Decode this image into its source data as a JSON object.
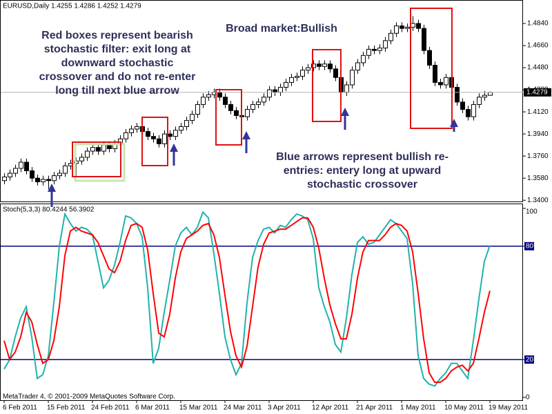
{
  "chart_data": [
    {
      "type": "candlestick",
      "title": "EURUSD,Daily 1.4255 1.4286 1.4252 1.4279",
      "x": [
        "2011-02-06",
        "2011-02-07",
        "2011-02-08",
        "2011-02-09",
        "2011-02-10",
        "2011-02-11",
        "2011-02-13",
        "2011-02-14",
        "2011-02-15",
        "2011-02-16",
        "2011-02-17",
        "2011-02-18",
        "2011-02-20",
        "2011-02-21",
        "2011-02-22",
        "2011-02-23",
        "2011-02-24",
        "2011-02-25",
        "2011-02-27",
        "2011-02-28",
        "2011-03-01",
        "2011-03-02",
        "2011-03-03",
        "2011-03-04",
        "2011-03-06",
        "2011-03-07",
        "2011-03-08",
        "2011-03-09",
        "2011-03-10",
        "2011-03-11",
        "2011-03-13",
        "2011-03-14",
        "2011-03-15",
        "2011-03-16",
        "2011-03-17",
        "2011-03-18",
        "2011-03-20",
        "2011-03-21",
        "2011-03-22",
        "2011-03-23",
        "2011-03-24",
        "2011-03-25",
        "2011-03-27",
        "2011-03-28",
        "2011-03-29",
        "2011-03-30",
        "2011-03-31",
        "2011-04-01",
        "2011-04-03",
        "2011-04-04",
        "2011-04-05",
        "2011-04-06",
        "2011-04-07",
        "2011-04-08",
        "2011-04-10",
        "2011-04-11",
        "2011-04-12",
        "2011-04-13",
        "2011-04-14",
        "2011-04-15",
        "2011-04-17",
        "2011-04-18",
        "2011-04-19",
        "2011-04-20",
        "2011-04-21",
        "2011-04-22",
        "2011-04-24",
        "2011-04-25",
        "2011-04-26",
        "2011-04-27",
        "2011-04-28",
        "2011-04-29",
        "2011-05-01",
        "2011-05-02",
        "2011-05-03",
        "2011-05-04",
        "2011-05-05",
        "2011-05-06",
        "2011-05-08",
        "2011-05-09",
        "2011-05-10",
        "2011-05-11",
        "2011-05-12",
        "2011-05-13",
        "2011-05-15",
        "2011-05-16",
        "2011-05-17",
        "2011-05-18",
        "2011-05-19"
      ],
      "open": [
        1.356,
        1.359,
        1.362,
        1.366,
        1.371,
        1.364,
        1.358,
        1.355,
        1.357,
        1.356,
        1.36,
        1.362,
        1.368,
        1.37,
        1.372,
        1.375,
        1.38,
        1.383,
        1.38,
        1.385,
        1.382,
        1.386,
        1.39,
        1.395,
        1.398,
        1.4,
        1.396,
        1.392,
        1.39,
        1.386,
        1.394,
        1.392,
        1.397,
        1.4,
        1.405,
        1.41,
        1.418,
        1.424,
        1.426,
        1.428,
        1.424,
        1.418,
        1.413,
        1.409,
        1.408,
        1.414,
        1.418,
        1.42,
        1.424,
        1.43,
        1.428,
        1.432,
        1.436,
        1.44,
        1.441,
        1.446,
        1.448,
        1.451,
        1.449,
        1.451,
        1.447,
        1.44,
        1.428,
        1.434,
        1.446,
        1.452,
        1.458,
        1.463,
        1.462,
        1.464,
        1.47,
        1.476,
        1.482,
        1.48,
        1.481,
        1.484,
        1.48,
        1.462,
        1.45,
        1.436,
        1.434,
        1.44,
        1.432,
        1.42,
        1.414,
        1.408,
        1.418,
        1.424,
        1.4255
      ],
      "high": [
        1.362,
        1.365,
        1.369,
        1.374,
        1.374,
        1.367,
        1.361,
        1.36,
        1.36,
        1.363,
        1.365,
        1.371,
        1.373,
        1.375,
        1.378,
        1.383,
        1.386,
        1.386,
        1.388,
        1.388,
        1.389,
        1.393,
        1.398,
        1.401,
        1.403,
        1.403,
        1.399,
        1.395,
        1.393,
        1.397,
        1.397,
        1.4,
        1.403,
        1.408,
        1.413,
        1.421,
        1.427,
        1.429,
        1.431,
        1.431,
        1.427,
        1.421,
        1.416,
        1.412,
        1.417,
        1.421,
        1.423,
        1.427,
        1.433,
        1.433,
        1.435,
        1.439,
        1.443,
        1.444,
        1.449,
        1.451,
        1.454,
        1.454,
        1.454,
        1.454,
        1.45,
        1.443,
        1.437,
        1.449,
        1.455,
        1.461,
        1.466,
        1.466,
        1.467,
        1.473,
        1.479,
        1.485,
        1.485,
        1.484,
        1.49,
        1.487,
        1.483,
        1.465,
        1.453,
        1.439,
        1.443,
        1.443,
        1.435,
        1.423,
        1.417,
        1.421,
        1.427,
        1.429,
        1.4286
      ],
      "low": [
        1.353,
        1.356,
        1.359,
        1.363,
        1.361,
        1.355,
        1.352,
        1.352,
        1.349,
        1.353,
        1.357,
        1.359,
        1.365,
        1.36,
        1.369,
        1.372,
        1.377,
        1.377,
        1.377,
        1.379,
        1.379,
        1.383,
        1.387,
        1.392,
        1.395,
        1.393,
        1.389,
        1.387,
        1.383,
        1.383,
        1.389,
        1.389,
        1.394,
        1.397,
        1.402,
        1.407,
        1.415,
        1.421,
        1.423,
        1.421,
        1.415,
        1.41,
        1.406,
        1.405,
        1.405,
        1.411,
        1.415,
        1.417,
        1.421,
        1.425,
        1.425,
        1.429,
        1.433,
        1.437,
        1.438,
        1.443,
        1.445,
        1.446,
        1.446,
        1.444,
        1.437,
        1.425,
        1.425,
        1.431,
        1.443,
        1.449,
        1.455,
        1.459,
        1.459,
        1.461,
        1.467,
        1.473,
        1.477,
        1.477,
        1.478,
        1.477,
        1.459,
        1.447,
        1.433,
        1.431,
        1.431,
        1.429,
        1.417,
        1.411,
        1.405,
        1.405,
        1.415,
        1.421,
        1.4252
      ],
      "close": [
        1.359,
        1.362,
        1.366,
        1.371,
        1.364,
        1.358,
        1.355,
        1.357,
        1.356,
        1.36,
        1.362,
        1.368,
        1.37,
        1.372,
        1.375,
        1.38,
        1.383,
        1.38,
        1.385,
        1.382,
        1.386,
        1.39,
        1.395,
        1.398,
        1.4,
        1.396,
        1.392,
        1.39,
        1.386,
        1.394,
        1.392,
        1.397,
        1.4,
        1.405,
        1.41,
        1.418,
        1.424,
        1.426,
        1.428,
        1.424,
        1.418,
        1.413,
        1.409,
        1.408,
        1.414,
        1.418,
        1.42,
        1.424,
        1.43,
        1.428,
        1.432,
        1.436,
        1.44,
        1.441,
        1.446,
        1.448,
        1.451,
        1.449,
        1.451,
        1.447,
        1.44,
        1.428,
        1.434,
        1.446,
        1.452,
        1.458,
        1.463,
        1.462,
        1.464,
        1.47,
        1.476,
        1.482,
        1.48,
        1.481,
        1.484,
        1.48,
        1.462,
        1.45,
        1.436,
        1.434,
        1.44,
        1.432,
        1.42,
        1.414,
        1.408,
        1.418,
        1.424,
        1.4255,
        1.4279
      ],
      "ylim": [
        1.339,
        1.502
      ],
      "yticks": [
        {
          "value": 1.34,
          "label": "1.3400"
        },
        {
          "value": 1.358,
          "label": "1.3580"
        },
        {
          "value": 1.376,
          "label": "1.3760"
        },
        {
          "value": 1.394,
          "label": "1.3940"
        },
        {
          "value": 1.412,
          "label": "1.4120"
        },
        {
          "value": 1.43,
          "label": "1.4300"
        },
        {
          "value": 1.448,
          "label": "1.4480"
        },
        {
          "value": 1.466,
          "label": "1.4660"
        },
        {
          "value": 1.484,
          "label": "1.4840"
        }
      ],
      "annotations": [
        {
          "color": "#2e2e5a",
          "lines": [
            "Red boxes represent bearish",
            "stochastic filter: exit long at",
            "downward stochastic",
            "crossover and do not re-enter",
            "long till next blue arrow"
          ]
        },
        {
          "color": "#2e2e5a",
          "lines": [
            "Broad market:Bullish"
          ]
        },
        {
          "color": "#2e2e5a",
          "lines": [
            "Blue arrows represent bullish re-",
            "entries: entery long at upward",
            "stochastic crossover"
          ]
        }
      ]
    },
    {
      "type": "line",
      "title": "Stoch(5,3,3) 80.4244 56.3902",
      "series": [
        {
          "color": "#20b2aa",
          "values": [
            15,
            20,
            32,
            42,
            48,
            32,
            10,
            12,
            22,
            50,
            80,
            97,
            92,
            88,
            90,
            89,
            86,
            72,
            58,
            62,
            70,
            82,
            96,
            95,
            92,
            85,
            58,
            18,
            26,
            45,
            62,
            80,
            87,
            90,
            86,
            90,
            98,
            95,
            76,
            55,
            32,
            20,
            12,
            18,
            50,
            74,
            83,
            89,
            90,
            87,
            91,
            90,
            94,
            97,
            96,
            94,
            84,
            58,
            48,
            40,
            28,
            24,
            42,
            65,
            82,
            85,
            81,
            82,
            86,
            90,
            94,
            92,
            88,
            84,
            60,
            22,
            10,
            7,
            6,
            10,
            13,
            18,
            18,
            14,
            10,
            30,
            52,
            72,
            80.4244
          ]
        },
        {
          "color": "#ff0000",
          "values": [
            30,
            20,
            24,
            32,
            45,
            40,
            28,
            18,
            20,
            30,
            48,
            75,
            88,
            90,
            88,
            87,
            86,
            82,
            75,
            68,
            66,
            72,
            83,
            91,
            92,
            90,
            78,
            55,
            34,
            32,
            44,
            63,
            77,
            84,
            86,
            88,
            91,
            92,
            86,
            74,
            54,
            35,
            22,
            16,
            27,
            48,
            69,
            81,
            87,
            88,
            89,
            89,
            91,
            93,
            95,
            95,
            90,
            79,
            63,
            49,
            39,
            31,
            31,
            44,
            63,
            77,
            83,
            83,
            83,
            86,
            90,
            92,
            91,
            88,
            77,
            55,
            31,
            13,
            8,
            8,
            10,
            14,
            16,
            17,
            14,
            18,
            31,
            45,
            56.3902
          ]
        }
      ],
      "ylim": [
        -1.5,
        102.2
      ],
      "yticks": [
        100,
        80,
        20,
        0
      ],
      "levels": [
        80,
        20
      ],
      "level_color": "#000080",
      "xticks": [
        {
          "value": "2011-02-06",
          "label": "6 Feb 2011"
        },
        {
          "value": "2011-02-15",
          "label": "15 Feb 2011"
        },
        {
          "value": "2011-02-24",
          "label": "24 Feb 2011"
        },
        {
          "value": "2011-03-06",
          "label": "6 Mar 2011"
        },
        {
          "value": "2011-03-15",
          "label": "15 Mar 2011"
        },
        {
          "value": "2011-03-24",
          "label": "24 Mar 2011"
        },
        {
          "value": "2011-04-03",
          "label": "3 Apr 2011"
        },
        {
          "value": "2011-04-12",
          "label": "12 Apr 2011"
        },
        {
          "value": "2011-04-21",
          "label": "21 Apr 2011"
        },
        {
          "value": "2011-05-01",
          "label": "1 May 2011"
        },
        {
          "value": "2011-05-10",
          "label": "10 May 2011"
        },
        {
          "value": "2011-05-19",
          "label": "19 May 2011"
        }
      ],
      "footer": "MetaTrader 4, © 2001-2009 MetaQuotes Software Corp."
    }
  ]
}
